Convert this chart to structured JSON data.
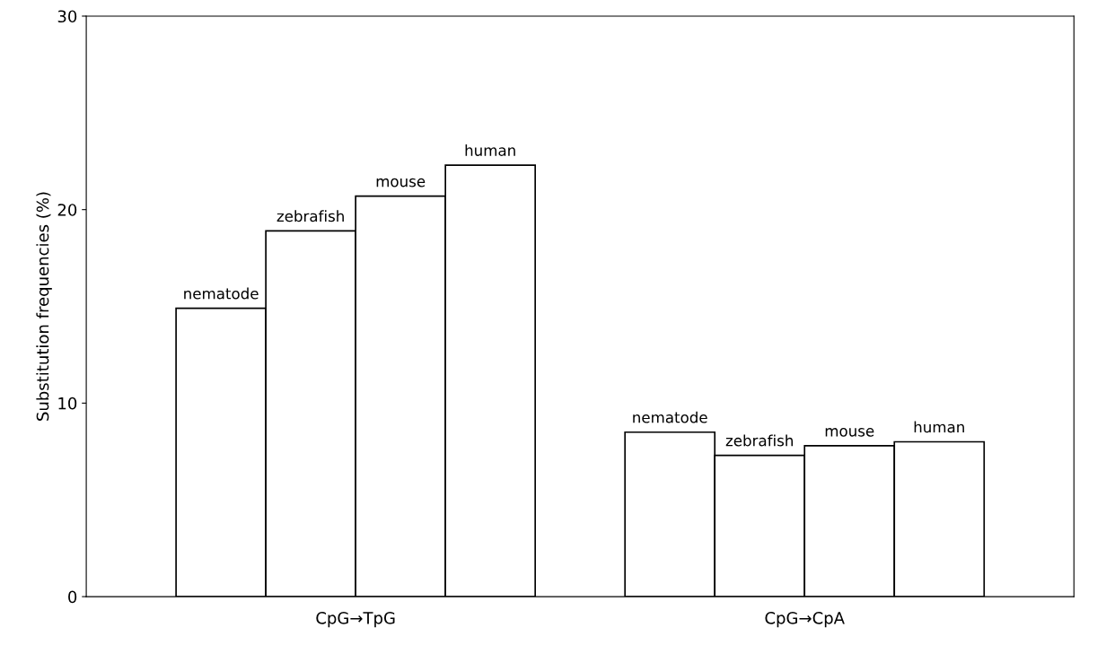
{
  "chart_data": {
    "type": "bar",
    "ylabel": "Substitution frequencies (%)",
    "categories": [
      "CpG→TpG",
      "CpG→CpA"
    ],
    "series": [
      {
        "name": "nematode",
        "color": "#ffffff",
        "values": [
          14.9,
          8.5
        ]
      },
      {
        "name": "zebrafish",
        "color": "#ffffff",
        "values": [
          18.9,
          7.3
        ]
      },
      {
        "name": "mouse",
        "color": "#ffffff",
        "values": [
          20.7,
          7.8
        ]
      },
      {
        "name": "human",
        "color": "#ffffff",
        "values": [
          22.3,
          8.0
        ]
      }
    ],
    "ylim": [
      0,
      30
    ],
    "yticks": [
      0,
      10,
      20,
      30
    ],
    "grid": false,
    "legend": false
  }
}
